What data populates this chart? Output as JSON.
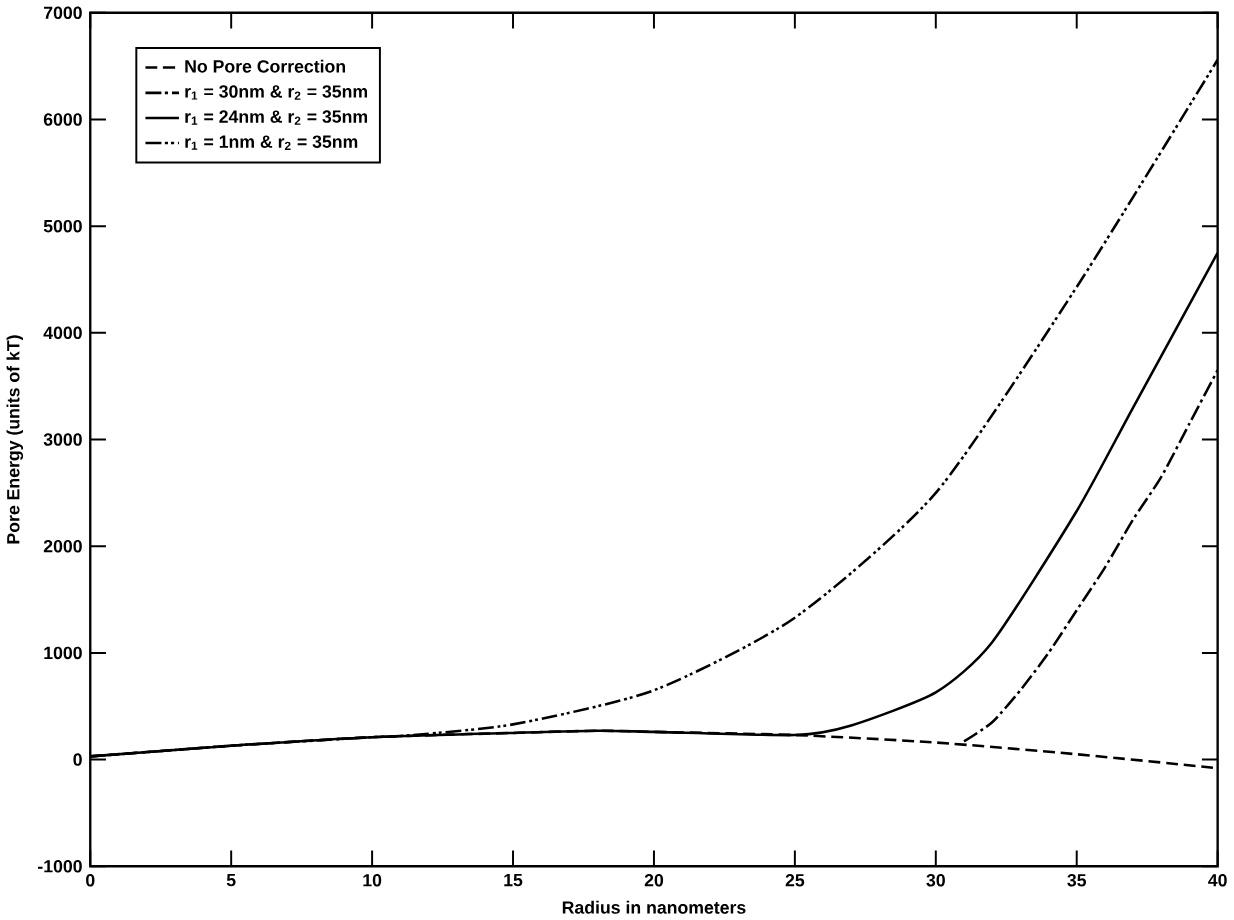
{
  "chart_data": {
    "type": "line",
    "xlabel": "Radius in nanometers",
    "ylabel": "Pore Energy (units of kT)",
    "xlim": [
      0,
      40
    ],
    "ylim": [
      -1000,
      7000
    ],
    "xticks": [
      0,
      5,
      10,
      15,
      20,
      25,
      30,
      35,
      40
    ],
    "yticks": [
      -1000,
      0,
      1000,
      2000,
      3000,
      4000,
      5000,
      6000,
      7000
    ],
    "legend": "top left",
    "grid": false,
    "series": [
      {
        "name": "No Pore Correction",
        "color": "#000000",
        "line_style": "dashed",
        "x": [
          0,
          5,
          10,
          15,
          18,
          20,
          25,
          30,
          35,
          40
        ],
        "values": [
          30,
          130,
          210,
          250,
          270,
          260,
          230,
          160,
          50,
          -80
        ]
      },
      {
        "name": "r$_{1}$ = 30nm & r$_{2}$ = 35nm",
        "color": "#000000",
        "line_style": "dashdot",
        "x": [
          31,
          32,
          33,
          34,
          35,
          36,
          37,
          38,
          39,
          40
        ],
        "values": [
          170,
          350,
          650,
          1000,
          1400,
          1800,
          2250,
          2650,
          3150,
          3650
        ]
      },
      {
        "name": "r$_{1}$ = 24nm & r$_{2}$ = 35nm",
        "color": "#000000",
        "line_style": "solid",
        "x": [
          0,
          5,
          10,
          15,
          18,
          20,
          25,
          27,
          30,
          32,
          35,
          37,
          40
        ],
        "values": [
          30,
          130,
          210,
          250,
          270,
          260,
          230,
          320,
          630,
          1100,
          2330,
          3300,
          4750
        ]
      },
      {
        "name": "r$_{1}$ =  1nm & r$_{2}$ = 35nm",
        "color": "#000000",
        "line_style": "dashdotdot",
        "x": [
          0,
          5,
          10,
          11,
          15,
          20,
          25,
          30,
          35,
          40
        ],
        "values": [
          30,
          130,
          210,
          220,
          330,
          650,
          1330,
          2500,
          4430,
          6560
        ]
      }
    ]
  }
}
